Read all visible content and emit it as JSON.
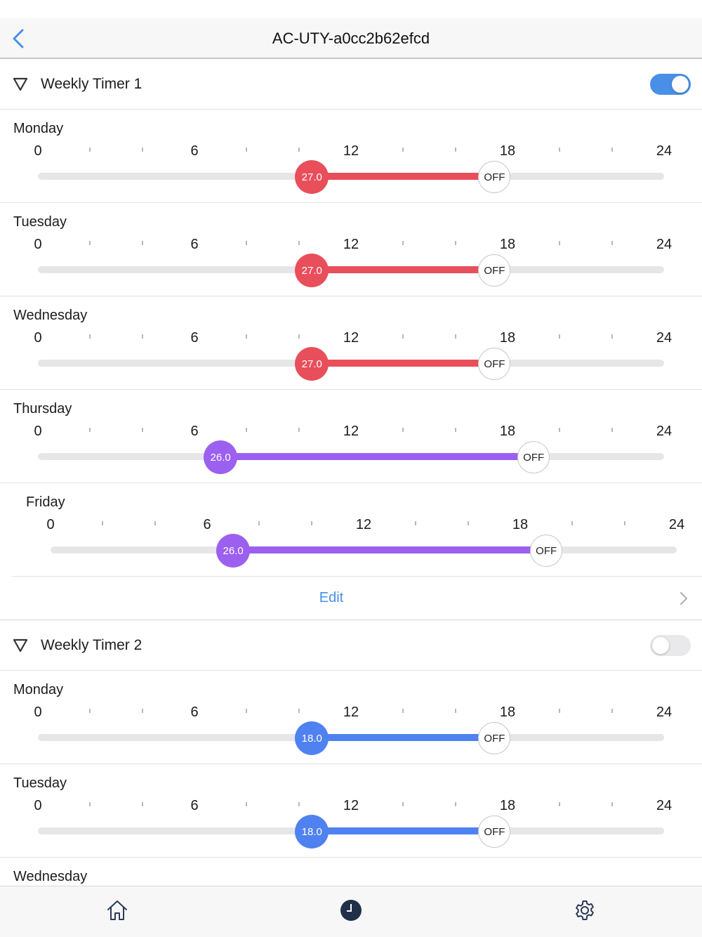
{
  "navbar": {
    "title": "AC-UTY-a0cc2b62efcd"
  },
  "axis_labels": [
    "0",
    "6",
    "12",
    "18",
    "24"
  ],
  "colors": {
    "accent": "#4a8fe7",
    "red": "#e94e5b",
    "purple": "#9c60f0",
    "blue": "#4f82f0"
  },
  "timers": [
    {
      "title": "Weekly Timer 1",
      "enabled": true,
      "days": [
        {
          "name": "Monday",
          "start_hour": 10.5,
          "end_hour": 17.5,
          "temp": "27.0",
          "end_label": "OFF",
          "color": "#e94e5b"
        },
        {
          "name": "Tuesday",
          "start_hour": 10.5,
          "end_hour": 17.5,
          "temp": "27.0",
          "end_label": "OFF",
          "color": "#e94e5b"
        },
        {
          "name": "Wednesday",
          "start_hour": 10.5,
          "end_hour": 17.5,
          "temp": "27.0",
          "end_label": "OFF",
          "color": "#e94e5b"
        },
        {
          "name": "Thursday",
          "start_hour": 7.0,
          "end_hour": 19.0,
          "temp": "26.0",
          "end_label": "OFF",
          "color": "#9c60f0"
        },
        {
          "name": "Friday",
          "start_hour": 7.0,
          "end_hour": 19.0,
          "temp": "26.0",
          "end_label": "OFF",
          "color": "#9c60f0"
        }
      ],
      "edit_label": "Edit"
    },
    {
      "title": "Weekly Timer 2",
      "enabled": false,
      "days": [
        {
          "name": "Monday",
          "start_hour": 10.5,
          "end_hour": 17.5,
          "temp": "18.0",
          "end_label": "OFF",
          "color": "#4f82f0"
        },
        {
          "name": "Tuesday",
          "start_hour": 10.5,
          "end_hour": 17.5,
          "temp": "18.0",
          "end_label": "OFF",
          "color": "#4f82f0"
        },
        {
          "name": "Wednesday"
        }
      ]
    }
  ],
  "tabbar": {
    "items": [
      "home-icon",
      "clock-icon",
      "gear-icon"
    ],
    "selected": "clock-icon"
  }
}
